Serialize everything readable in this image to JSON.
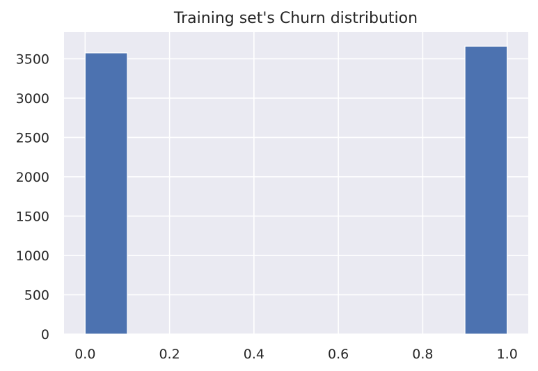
{
  "chart_data": {
    "type": "bar",
    "title": "Training set's Churn distribution",
    "xlabel": "",
    "ylabel": "",
    "xlim": [
      -0.05,
      1.05
    ],
    "ylim": [
      0,
      3840
    ],
    "x_ticks": [
      "0.0",
      "0.2",
      "0.4",
      "0.6",
      "0.8",
      "1.0"
    ],
    "y_ticks": [
      "0",
      "500",
      "1000",
      "1500",
      "2000",
      "2500",
      "3000",
      "3500"
    ],
    "bins": [
      {
        "x0": 0.0,
        "x1": 0.1,
        "value": 3575
      },
      {
        "x0": 0.9,
        "x1": 1.0,
        "value": 3660
      }
    ],
    "grid": true,
    "colors": {
      "bar": "#4c72b0",
      "plot_background": "#eaeaf2",
      "grid": "#ffffff",
      "text": "#262626"
    }
  }
}
